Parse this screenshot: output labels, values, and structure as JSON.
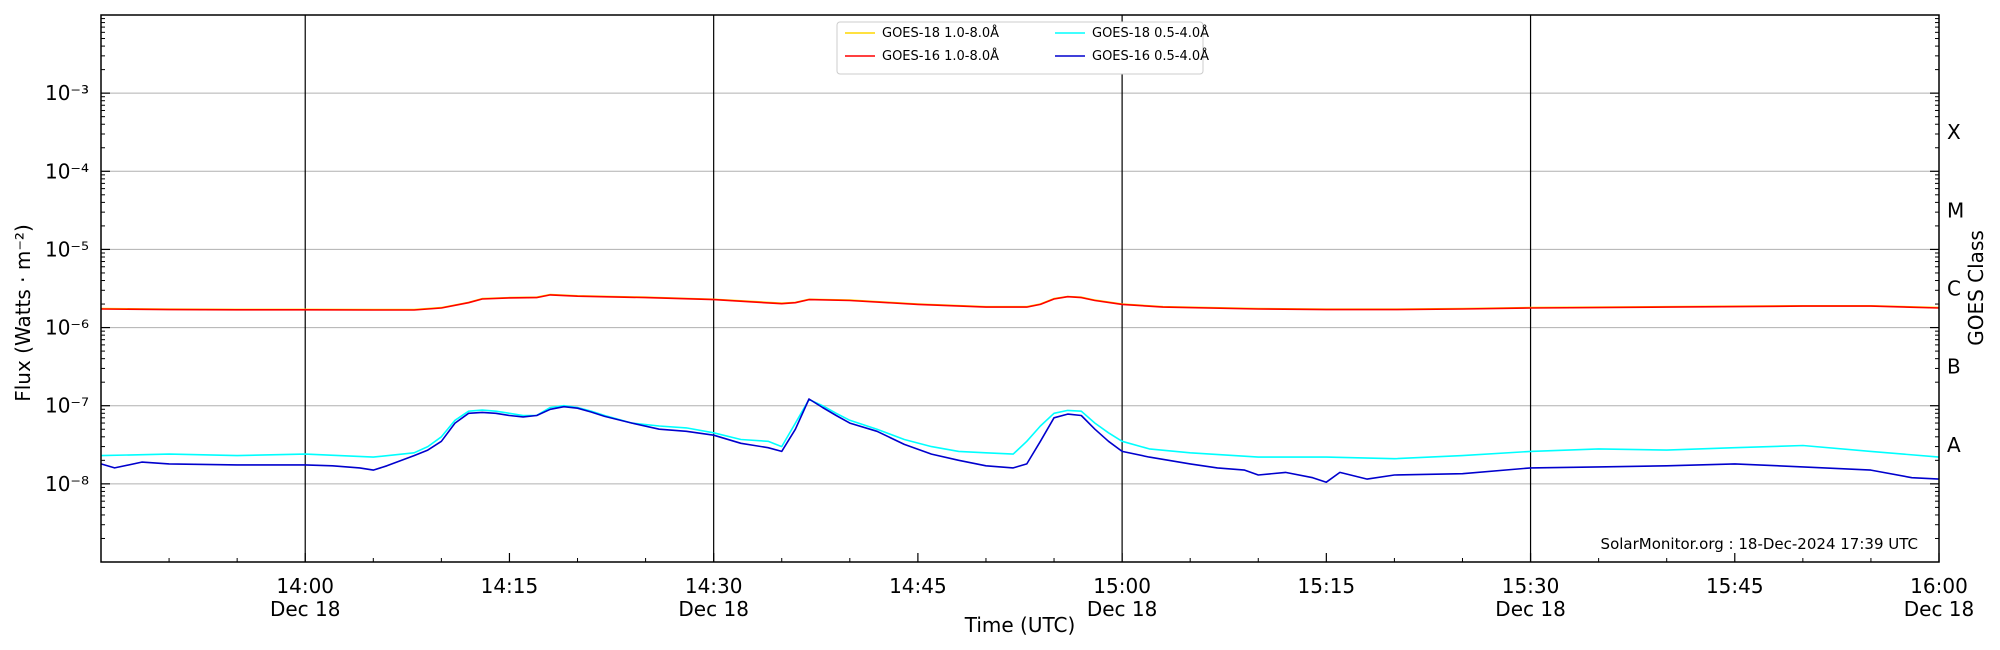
{
  "chart_data": {
    "type": "line",
    "title": "",
    "xlabel": "Time (UTC)",
    "ylabel": "Flux (Watts · m⁻²)",
    "ylabel_right": "GOES Class",
    "y_scale": "log",
    "ylim": [
      1e-09,
      0.01
    ],
    "xlim_minutes": [
      825,
      960
    ],
    "grid": "horizontal at decades, vertical lines at each half hour",
    "legend_placement": "top-center",
    "credit": "SolarMonitor.org : 18-Dec-2024 17:39 UTC",
    "y_ticks": [
      {
        "value": 1e-08,
        "label": "10⁻⁸"
      },
      {
        "value": 1e-07,
        "label": "10⁻⁷"
      },
      {
        "value": 1e-06,
        "label": "10⁻⁶"
      },
      {
        "value": 1e-05,
        "label": "10⁻⁵"
      },
      {
        "value": 0.0001,
        "label": "10⁻⁴"
      },
      {
        "value": 0.001,
        "label": "10⁻³"
      }
    ],
    "x_ticks": [
      {
        "minute": 840,
        "time": "14:00",
        "date": "Dec 18"
      },
      {
        "minute": 855,
        "time": "14:15",
        "date": ""
      },
      {
        "minute": 870,
        "time": "14:30",
        "date": "Dec 18"
      },
      {
        "minute": 885,
        "time": "14:45",
        "date": ""
      },
      {
        "minute": 900,
        "time": "15:00",
        "date": "Dec 18"
      },
      {
        "minute": 915,
        "time": "15:15",
        "date": ""
      },
      {
        "minute": 930,
        "time": "15:30",
        "date": "Dec 18"
      },
      {
        "minute": 945,
        "time": "15:45",
        "date": ""
      },
      {
        "minute": 960,
        "time": "16:00",
        "date": "Dec 18"
      }
    ],
    "vertical_lines_minutes": [
      840,
      870,
      900,
      930
    ],
    "goes_classes": [
      {
        "label": "A",
        "value": 3.16e-08
      },
      {
        "label": "B",
        "value": 3.16e-07
      },
      {
        "label": "C",
        "value": 3.16e-06
      },
      {
        "label": "M",
        "value": 3.16e-05
      },
      {
        "label": "X",
        "value": 0.000316
      }
    ],
    "series": [
      {
        "name": "GOES-18 1.0-8.0Å",
        "color": "#ffd700",
        "x": [
          825,
          830,
          835,
          840,
          845,
          848,
          850,
          852,
          853,
          855,
          857,
          858,
          860,
          865,
          870,
          873,
          875,
          876,
          877,
          880,
          885,
          890,
          893,
          894,
          895,
          896,
          897,
          898,
          900,
          903,
          910,
          915,
          920,
          925,
          930,
          940,
          950,
          955,
          960
        ],
        "y": [
          1.75e-06,
          1.72e-06,
          1.71e-06,
          1.71e-06,
          1.7e-06,
          1.7e-06,
          1.8e-06,
          2.1e-06,
          2.35e-06,
          2.42e-06,
          2.45e-06,
          2.65e-06,
          2.55e-06,
          2.45e-06,
          2.3e-06,
          2.15e-06,
          2.05e-06,
          2.1e-06,
          2.3e-06,
          2.25e-06,
          2e-06,
          1.85e-06,
          1.85e-06,
          2e-06,
          2.35e-06,
          2.5e-06,
          2.45e-06,
          2.25e-06,
          2e-06,
          1.85e-06,
          1.75e-06,
          1.72e-06,
          1.72e-06,
          1.75e-06,
          1.8e-06,
          1.85e-06,
          1.9e-06,
          1.9e-06,
          1.8e-06
        ]
      },
      {
        "name": "GOES-16 1.0-8.0Å",
        "color": "#ff0000",
        "x": [
          825,
          830,
          835,
          840,
          845,
          848,
          850,
          852,
          853,
          855,
          857,
          858,
          860,
          865,
          870,
          873,
          875,
          876,
          877,
          880,
          885,
          890,
          893,
          894,
          895,
          896,
          897,
          898,
          900,
          903,
          910,
          915,
          920,
          925,
          930,
          940,
          950,
          955,
          960
        ],
        "y": [
          1.73e-06,
          1.7e-06,
          1.69e-06,
          1.69e-06,
          1.68e-06,
          1.68e-06,
          1.78e-06,
          2.08e-06,
          2.32e-06,
          2.4e-06,
          2.42e-06,
          2.62e-06,
          2.52e-06,
          2.42e-06,
          2.28e-06,
          2.12e-06,
          2.02e-06,
          2.08e-06,
          2.28e-06,
          2.22e-06,
          1.98e-06,
          1.83e-06,
          1.83e-06,
          1.98e-06,
          2.32e-06,
          2.48e-06,
          2.42e-06,
          2.22e-06,
          1.98e-06,
          1.83e-06,
          1.73e-06,
          1.7e-06,
          1.7e-06,
          1.73e-06,
          1.78e-06,
          1.83e-06,
          1.88e-06,
          1.88e-06,
          1.78e-06
        ]
      },
      {
        "name": "GOES-18 0.5-4.0Å",
        "color": "#00ffff",
        "x": [
          825,
          830,
          835,
          840,
          845,
          848,
          849,
          850,
          851,
          852,
          853,
          854,
          855,
          856,
          857,
          858,
          859,
          860,
          861,
          862,
          864,
          866,
          868,
          870,
          872,
          874,
          875,
          876,
          877,
          878,
          879,
          880,
          882,
          884,
          886,
          888,
          890,
          892,
          893,
          894,
          895,
          896,
          897,
          898,
          899,
          900,
          902,
          905,
          910,
          915,
          920,
          925,
          930,
          935,
          940,
          945,
          950,
          955,
          960
        ],
        "y": [
          2.3e-08,
          2.4e-08,
          2.3e-08,
          2.4e-08,
          2.2e-08,
          2.5e-08,
          3e-08,
          4e-08,
          6.5e-08,
          8.5e-08,
          8.8e-08,
          8.5e-08,
          8e-08,
          7.5e-08,
          7.5e-08,
          9.5e-08,
          1e-07,
          9.5e-08,
          8.5e-08,
          7.5e-08,
          6e-08,
          5.5e-08,
          5.2e-08,
          4.5e-08,
          3.7e-08,
          3.5e-08,
          3e-08,
          6e-08,
          1.2e-07,
          1e-07,
          8e-08,
          6.5e-08,
          5e-08,
          3.7e-08,
          3e-08,
          2.6e-08,
          2.5e-08,
          2.4e-08,
          3.5e-08,
          5.5e-08,
          8e-08,
          8.7e-08,
          8.5e-08,
          6e-08,
          4.5e-08,
          3.5e-08,
          2.8e-08,
          2.5e-08,
          2.2e-08,
          2.2e-08,
          2.1e-08,
          2.3e-08,
          2.6e-08,
          2.8e-08,
          2.7e-08,
          2.9e-08,
          3.1e-08,
          2.6e-08,
          2.2e-08
        ]
      },
      {
        "name": "GOES-16 0.5-4.0Å",
        "color": "#0000cd",
        "x": [
          825,
          826,
          828,
          830,
          835,
          840,
          842,
          844,
          845,
          846,
          848,
          849,
          850,
          851,
          852,
          853,
          854,
          855,
          856,
          857,
          858,
          859,
          860,
          861,
          862,
          864,
          866,
          868,
          870,
          872,
          873,
          874,
          875,
          876,
          877,
          878,
          879,
          880,
          882,
          884,
          886,
          888,
          890,
          892,
          893,
          894,
          895,
          896,
          897,
          898,
          899,
          900,
          902,
          905,
          907,
          909,
          910,
          912,
          914,
          915,
          916,
          918,
          920,
          925,
          930,
          935,
          940,
          945,
          950,
          955,
          958,
          960
        ],
        "y": [
          1.8e-08,
          1.6e-08,
          1.9e-08,
          1.8e-08,
          1.75e-08,
          1.75e-08,
          1.7e-08,
          1.6e-08,
          1.5e-08,
          1.7e-08,
          2.3e-08,
          2.7e-08,
          3.5e-08,
          6e-08,
          8e-08,
          8.2e-08,
          8e-08,
          7.5e-08,
          7.2e-08,
          7.5e-08,
          9e-08,
          9.7e-08,
          9.3e-08,
          8.3e-08,
          7.3e-08,
          6e-08,
          5e-08,
          4.7e-08,
          4.2e-08,
          3.3e-08,
          3.1e-08,
          2.9e-08,
          2.6e-08,
          5e-08,
          1.22e-07,
          9.5e-08,
          7.5e-08,
          6e-08,
          4.7e-08,
          3.2e-08,
          2.4e-08,
          2e-08,
          1.7e-08,
          1.6e-08,
          1.8e-08,
          3.5e-08,
          7e-08,
          7.8e-08,
          7.5e-08,
          5e-08,
          3.5e-08,
          2.6e-08,
          2.2e-08,
          1.8e-08,
          1.6e-08,
          1.5e-08,
          1.3e-08,
          1.4e-08,
          1.2e-08,
          1.05e-08,
          1.4e-08,
          1.15e-08,
          1.3e-08,
          1.35e-08,
          1.6e-08,
          1.65e-08,
          1.7e-08,
          1.8e-08,
          1.65e-08,
          1.5e-08,
          1.2e-08,
          1.15e-08
        ]
      }
    ]
  }
}
